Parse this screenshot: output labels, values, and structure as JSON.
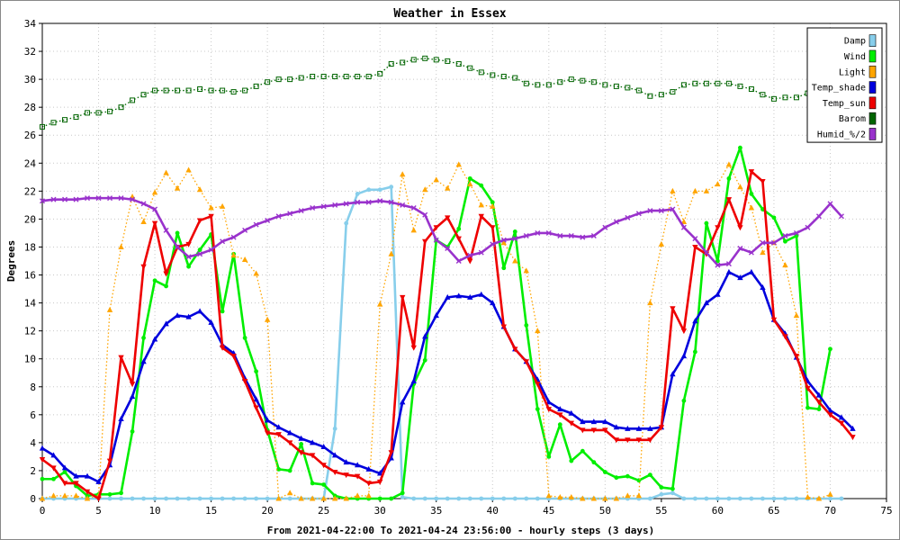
{
  "chart_data": {
    "type": "line",
    "title": "Weather in Essex",
    "xlabel": "From 2021-04-22:00 To 2021-04-24 23:56:00 - hourly steps (3 days)",
    "ylabel": "Degrees",
    "xlim": [
      0,
      75
    ],
    "ylim": [
      0,
      34
    ],
    "x_ticks": [
      "0",
      "5",
      "10",
      "15",
      "20",
      "25",
      "30",
      "35",
      "40",
      "45",
      "50",
      "55",
      "60",
      "65",
      "70",
      "75"
    ],
    "y_ticks": [
      "0",
      "2",
      "4",
      "6",
      "8",
      "10",
      "12",
      "14",
      "16",
      "18",
      "20",
      "22",
      "24",
      "26",
      "28",
      "30",
      "32",
      "34"
    ],
    "grid": true,
    "legend_position": "top-right",
    "series": [
      {
        "name": "Damp",
        "color": "#87ceeb",
        "marker": "circle",
        "style": "solid",
        "values": [
          0,
          0,
          0,
          0,
          0,
          0,
          0,
          0,
          0,
          0,
          0,
          0,
          0,
          0,
          0,
          0,
          0,
          0,
          0,
          0,
          0,
          0,
          0,
          0,
          0,
          0,
          5,
          19.7,
          21.8,
          22.1,
          22.1,
          22.3,
          0.1,
          0,
          0,
          0,
          0,
          0,
          0,
          0,
          0,
          0,
          0,
          0,
          0,
          0,
          0,
          0,
          0,
          0,
          0,
          0,
          0,
          0,
          0,
          0.3,
          0.4,
          0,
          0,
          0,
          0,
          0,
          0,
          0,
          0,
          0,
          0,
          0,
          0,
          0,
          0,
          0
        ]
      },
      {
        "name": "Wind",
        "color": "#00ee00",
        "marker": "circle",
        "style": "solid",
        "values": [
          1.4,
          1.4,
          1.9,
          0.9,
          0.2,
          0.3,
          0.3,
          0.4,
          4.8,
          11.5,
          15.6,
          15.2,
          19.0,
          16.6,
          17.8,
          18.9,
          13.4,
          17.5,
          11.5,
          9.1,
          4.9,
          2.1,
          2.0,
          3.9,
          1.1,
          1.0,
          0.2,
          0,
          0,
          0,
          0,
          0,
          0.4,
          8.2,
          9.9,
          18.5,
          18.0,
          19.3,
          22.9,
          22.4,
          21.2,
          16.5,
          19.1,
          12.4,
          6.4,
          3.0,
          5.3,
          2.7,
          3.4,
          2.6,
          1.9,
          1.5,
          1.6,
          1.3,
          1.7,
          0.8,
          0.7,
          7.0,
          10.5,
          19.7,
          17.0,
          22.9,
          25.1,
          21.8,
          20.7,
          20.1,
          18.4,
          18.8,
          6.5,
          6.4,
          10.7
        ]
      },
      {
        "name": "Light",
        "color": "#ffa500",
        "marker": "triangle",
        "style": "dotted",
        "values": [
          0,
          0.2,
          0.2,
          0.2,
          0,
          0.2,
          13.5,
          18.0,
          21.6,
          19.8,
          21.9,
          23.3,
          22.2,
          23.5,
          22.1,
          20.8,
          20.9,
          17.4,
          17.1,
          16.1,
          12.8,
          0,
          0.4,
          0,
          0,
          0,
          0,
          0,
          0.2,
          0.2,
          13.9,
          17.5,
          23.2,
          19.2,
          22.1,
          22.8,
          22.2,
          23.9,
          22.5,
          21.0,
          20.9,
          18.3,
          17.0,
          16.3,
          12.0,
          0.2,
          0.1,
          0.1,
          0,
          0,
          0,
          0,
          0.2,
          0.2,
          14.0,
          18.2,
          22.0,
          19.8,
          22.0,
          22.0,
          22.5,
          23.9,
          22.3,
          20.8,
          17.6,
          18.3,
          16.7,
          13.1,
          0.1,
          0,
          0.3
        ]
      },
      {
        "name": "Temp_shade",
        "color": "#0000dd",
        "marker": "triangle",
        "style": "solid",
        "values": [
          3.6,
          3.1,
          2.2,
          1.6,
          1.6,
          1.2,
          2.4,
          5.7,
          7.3,
          9.8,
          11.4,
          12.5,
          13.1,
          13.0,
          13.4,
          12.6,
          11.0,
          10.4,
          8.6,
          7.1,
          5.6,
          5.1,
          4.7,
          4.3,
          4.0,
          3.7,
          3.1,
          2.6,
          2.4,
          2.1,
          1.8,
          2.9,
          6.9,
          8.4,
          11.6,
          13.1,
          14.4,
          14.5,
          14.4,
          14.6,
          14.0,
          12.3,
          10.7,
          9.8,
          8.5,
          6.9,
          6.4,
          6.1,
          5.5,
          5.5,
          5.5,
          5.1,
          5.0,
          5.0,
          5.0,
          5.1,
          8.9,
          10.2,
          12.7,
          14.0,
          14.6,
          16.2,
          15.8,
          16.2,
          15.1,
          12.8,
          11.8,
          10.1,
          8.4,
          7.4,
          6.3,
          5.8,
          5.0
        ]
      },
      {
        "name": "Temp_sun",
        "color": "#ee0000",
        "marker": "triangle-down",
        "style": "solid",
        "values": [
          2.8,
          2.2,
          1.1,
          1.1,
          0.5,
          0,
          2.7,
          10.1,
          8.2,
          16.6,
          19.7,
          16.1,
          18.0,
          18.2,
          19.9,
          20.2,
          10.8,
          10.2,
          8.4,
          6.5,
          4.7,
          4.6,
          4.0,
          3.3,
          3.1,
          2.4,
          1.9,
          1.7,
          1.6,
          1.1,
          1.2,
          3.3,
          14.4,
          10.8,
          18.4,
          19.4,
          20.1,
          18.6,
          17.0,
          20.2,
          19.4,
          12.3,
          10.7,
          9.8,
          8.2,
          6.4,
          6.0,
          5.4,
          4.9,
          4.9,
          4.9,
          4.2,
          4.2,
          4.2,
          4.2,
          5.1,
          13.6,
          12.0,
          18.0,
          17.5,
          19.4,
          21.4,
          19.4,
          23.4,
          22.7,
          12.8,
          11.6,
          10.2,
          7.9,
          6.9,
          6.0,
          5.4,
          4.4
        ]
      },
      {
        "name": "Barom",
        "color": "#006400",
        "marker": "square",
        "style": "dotted",
        "values": [
          26.6,
          26.9,
          27.1,
          27.3,
          27.6,
          27.6,
          27.7,
          28.0,
          28.5,
          28.9,
          29.2,
          29.2,
          29.2,
          29.2,
          29.3,
          29.2,
          29.2,
          29.1,
          29.2,
          29.5,
          29.8,
          30.0,
          30.0,
          30.1,
          30.2,
          30.2,
          30.2,
          30.2,
          30.2,
          30.2,
          30.4,
          31.1,
          31.2,
          31.4,
          31.5,
          31.4,
          31.3,
          31.1,
          30.8,
          30.5,
          30.3,
          30.2,
          30.1,
          29.7,
          29.6,
          29.6,
          29.8,
          30.0,
          29.9,
          29.8,
          29.6,
          29.5,
          29.4,
          29.2,
          28.8,
          28.9,
          29.1,
          29.6,
          29.7,
          29.7,
          29.7,
          29.7,
          29.5,
          29.3,
          28.9,
          28.6,
          28.7,
          28.7,
          29.0,
          29.2
        ]
      },
      {
        "name": "Humid_%/2",
        "color": "#9932cc",
        "marker": "x",
        "style": "solid",
        "values": [
          21.3,
          21.4,
          21.4,
          21.4,
          21.5,
          21.5,
          21.5,
          21.5,
          21.4,
          21.1,
          20.7,
          19.2,
          18.0,
          17.3,
          17.5,
          17.8,
          18.4,
          18.7,
          19.2,
          19.6,
          19.9,
          20.2,
          20.4,
          20.6,
          20.8,
          20.9,
          21.0,
          21.1,
          21.2,
          21.2,
          21.3,
          21.2,
          21.0,
          20.8,
          20.3,
          18.5,
          17.9,
          17.0,
          17.4,
          17.6,
          18.2,
          18.5,
          18.6,
          18.8,
          19.0,
          19.0,
          18.8,
          18.8,
          18.7,
          18.8,
          19.4,
          19.8,
          20.1,
          20.4,
          20.6,
          20.6,
          20.7,
          19.4,
          18.6,
          17.6,
          16.7,
          16.8,
          17.9,
          17.6,
          18.3,
          18.3,
          18.8,
          19.0,
          19.4,
          20.2,
          21.1,
          20.2
        ]
      }
    ]
  }
}
